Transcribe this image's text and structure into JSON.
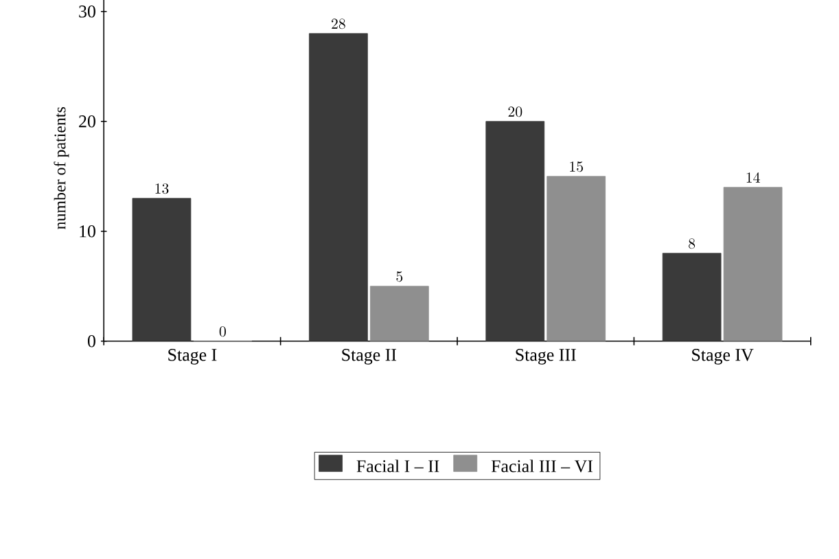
{
  "chart_data": {
    "type": "bar",
    "ylabel": "number of patients",
    "categories": [
      "Stage I",
      "Stage II",
      "Stage III",
      "Stage IV"
    ],
    "series": [
      {
        "name": "Facial I – II",
        "color": "#3a3a3a",
        "values": [
          13,
          28,
          20,
          8
        ]
      },
      {
        "name": "Facial III – VI",
        "color": "#8f8f8f",
        "values": [
          0,
          5,
          15,
          14
        ]
      }
    ],
    "ylim": [
      0,
      31.5
    ],
    "yticks": [
      0,
      10,
      20,
      30
    ],
    "data_labels": true,
    "legend": "bottom",
    "grid": false
  }
}
